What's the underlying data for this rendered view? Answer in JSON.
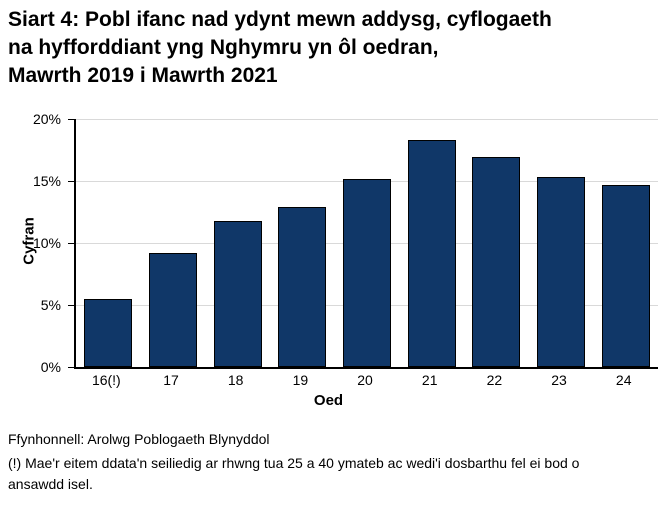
{
  "header": {
    "title_lines": [
      "Siart 4: Pobl ifanc nad ydynt mewn addysg, cyflogaeth",
      "na hyfforddiant yng Nghymru yn ôl oedran,",
      "Mawrth 2019 i Mawrth 2021"
    ]
  },
  "chart_data": {
    "type": "bar",
    "categories": [
      "16(!)",
      "17",
      "18",
      "19",
      "20",
      "21",
      "22",
      "23",
      "24"
    ],
    "values": [
      5.5,
      9.2,
      11.8,
      12.9,
      15.2,
      18.3,
      16.9,
      15.3,
      14.7
    ],
    "title": "Siart 4: Pobl ifanc nad ydynt mewn addysg, cyflogaeth na hyfforddiant yng Nghymru yn ôl oedran, Mawrth 2019 i Mawrth 2021",
    "xlabel": "Oed",
    "ylabel": "Cyfran",
    "ylim": [
      0,
      20
    ],
    "yticks": [
      0,
      5,
      10,
      15,
      20
    ],
    "ytick_labels": [
      "0%",
      "5%",
      "10%",
      "15%",
      "20%"
    ],
    "grid": "horizontal-major-gridlines",
    "legend": "none",
    "colors": {
      "bar_fill": "#103768",
      "bar_border": "#000000",
      "gridline": "#d9d9d9",
      "axis": "#000000",
      "text": "#000000"
    }
  },
  "footer": {
    "source": "Ffynhonnell: Arolwg Poblogaeth Blynyddol",
    "note": "(!) Mae'r eitem ddata'n seiliedig ar rhwng tua 25 a 40 ymateb ac wedi'i dosbarthu fel ei bod o ansawdd isel."
  }
}
